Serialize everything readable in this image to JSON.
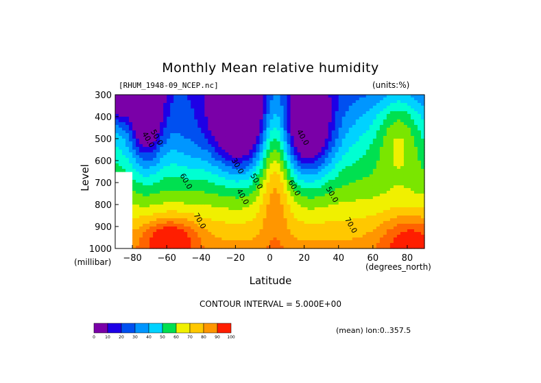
{
  "title": "Monthly Mean relative humidity",
  "file_label": "[RHUM_1948-09_NCEP.nc]",
  "units_label": "(units:%)",
  "y_axis": {
    "label": "Level",
    "units": "(millibar)"
  },
  "x_axis": {
    "label": "Latitude",
    "units": "(degrees_north)"
  },
  "contour_interval": "CONTOUR INTERVAL = 5.000E+00",
  "mean_label": "(mean) lon:0..357.5",
  "colors": [
    "#7a00a8",
    "#1e00e6",
    "#0050f0",
    "#0096ff",
    "#00d2ff",
    "#00ffd2",
    "#00e050",
    "#7ae600",
    "#f0f000",
    "#ffc800",
    "#ff9600",
    "#ff6400",
    "#ff1e00"
  ],
  "chart_data": {
    "type": "heatmap",
    "title": "Monthly Mean relative humidity",
    "xlabel": "Latitude",
    "ylabel": "Level",
    "xlim": [
      -90,
      90
    ],
    "ylim": [
      1000,
      300
    ],
    "x_ticks": [
      -80,
      -60,
      -40,
      -20,
      0,
      20,
      40,
      60,
      80
    ],
    "y_ticks": [
      300,
      400,
      500,
      600,
      700,
      800,
      900,
      1000
    ],
    "contour_labels": [
      {
        "lat": -72,
        "lev": 510,
        "text": "40.0"
      },
      {
        "lat": -67,
        "lev": 500,
        "text": "50.0"
      },
      {
        "lat": -50,
        "lev": 700,
        "text": "60.0"
      },
      {
        "lat": -42,
        "lev": 880,
        "text": "70.0"
      },
      {
        "lat": -20,
        "lev": 630,
        "text": "30.0"
      },
      {
        "lat": -17,
        "lev": 770,
        "text": "40.0"
      },
      {
        "lat": -9,
        "lev": 700,
        "text": "50.0"
      },
      {
        "lat": 13,
        "lev": 730,
        "text": "60.0"
      },
      {
        "lat": 18,
        "lev": 500,
        "text": "40.0"
      },
      {
        "lat": 35,
        "lev": 760,
        "text": "50.0"
      },
      {
        "lat": 46,
        "lev": 900,
        "text": "70.0"
      }
    ],
    "colorbar_ticks": [
      "0",
      "10",
      "20",
      "30",
      "40",
      "50",
      "60",
      "70",
      "80",
      "90",
      "100"
    ]
  }
}
